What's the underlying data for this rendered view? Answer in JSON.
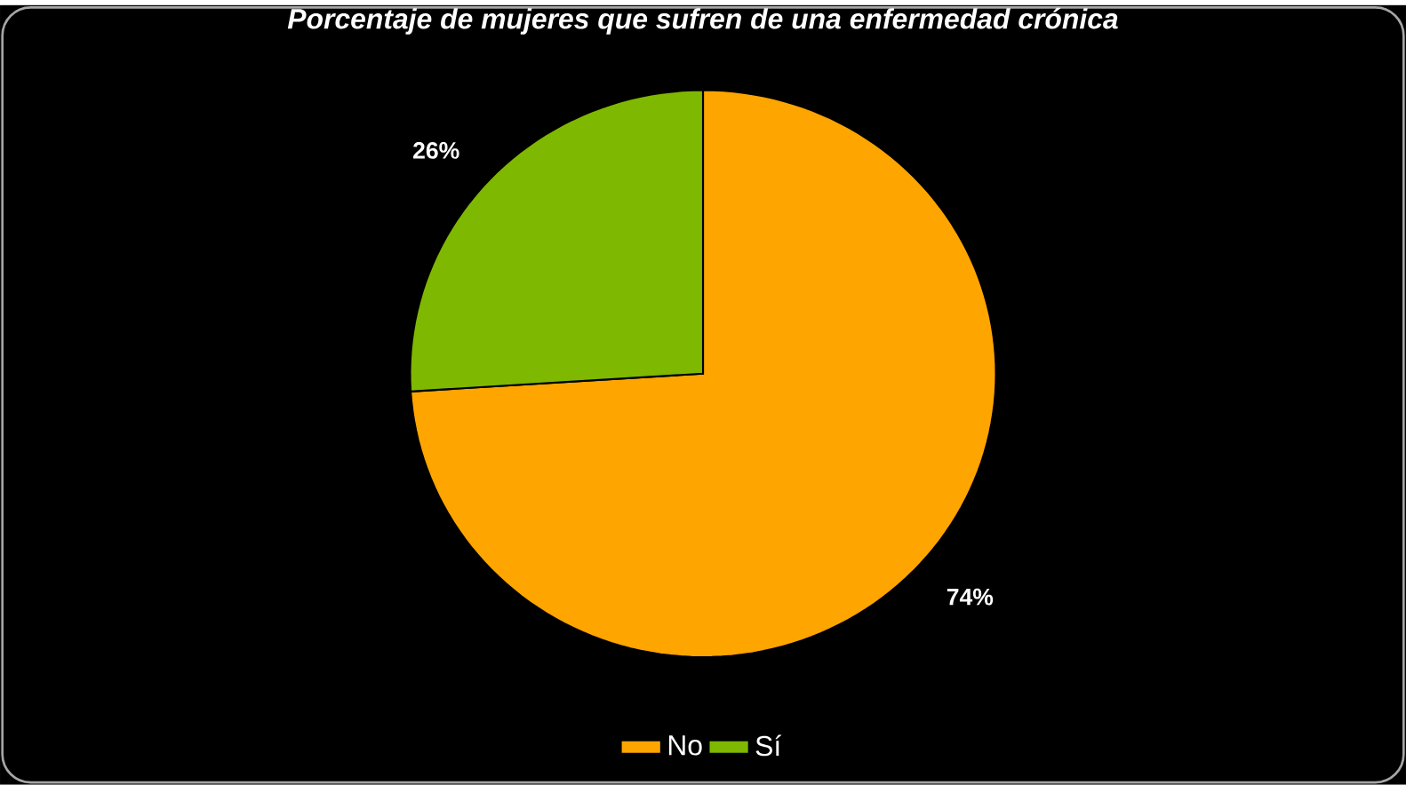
{
  "chart_data": {
    "type": "pie",
    "title": "Porcentaje de mujeres que sufren de una enfermedad crónica",
    "categories": [
      "No",
      "Sí"
    ],
    "values": [
      74,
      26
    ],
    "value_labels": [
      "74%",
      "26%"
    ],
    "colors": [
      "#ffa500",
      "#7fb800"
    ],
    "legend": "bottom"
  }
}
